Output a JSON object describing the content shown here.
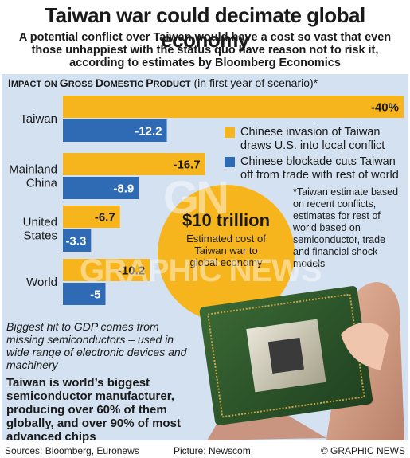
{
  "header": {
    "title": "Taiwan war could decimate global economy",
    "subtitle": "A potential conflict over Taiwan would have a cost so vast that even those unhappiest with the status quo have reason not to risk it, according to estimates by Bloomberg Economics"
  },
  "section": {
    "title_big_1": "I",
    "title_small_1": "MPACT ON ",
    "title_big_2": "G",
    "title_small_2": "ROSS ",
    "title_big_3": "D",
    "title_small_3": "OMESTIC ",
    "title_big_4": "P",
    "title_small_4": "RODUCT",
    "title_note": " (in first year of scenario)*"
  },
  "chart_data": {
    "type": "bar",
    "orientation": "horizontal",
    "categories": [
      "Taiwan",
      "Mainland China",
      "United States",
      "World"
    ],
    "category_lines": [
      [
        "Taiwan"
      ],
      [
        "Mainland",
        "China"
      ],
      [
        "United",
        "States"
      ],
      [
        "World"
      ]
    ],
    "series": [
      {
        "name": "Chinese invasion of Taiwan draws U.S. into local conflict",
        "values": [
          -40,
          -16.7,
          -6.7,
          -10.2
        ],
        "labels": [
          "-40%",
          "-16.7",
          "-6.7",
          "-10.2"
        ],
        "color": "#f7b51d"
      },
      {
        "name": "Chinese blockade cuts Taiwan off from trade with rest of world",
        "values": [
          -12.2,
          -8.9,
          -3.3,
          -5
        ],
        "labels": [
          "-12.2",
          "-8.9",
          "-3.3",
          "-5"
        ],
        "color": "#2f6ab4"
      }
    ],
    "xlim": [
      0,
      -40
    ],
    "grid": false
  },
  "legend": {
    "invasion": "Chinese invasion of Taiwan draws U.S. into local conflict",
    "blockade": "Chinese blockade cuts Taiwan off from trade with rest of world"
  },
  "footnote": "*Taiwan estimate based on recent conflicts, estimates for rest of world based on semiconductor, trade and financial shock models",
  "cost_callout": {
    "value": "$10 trillion",
    "caption": "Estimated cost of Taiwan war to global economy"
  },
  "notes": {
    "italic": "Biggest hit to GDP comes from missing semiconductors – used in wide range of electronic devices and machinery",
    "bold": "Taiwan is world’s biggest semiconductor manufacturer, producing over 60% of them globally, and over 90% of most advanced chips"
  },
  "footer": {
    "sources": "Sources: Bloomberg, Euronews",
    "picture": "Picture: Newscom",
    "credit": "© GRAPHIC NEWS"
  },
  "watermark": {
    "logo": "GN",
    "text": "GRAPHIC NEWS"
  },
  "colors": {
    "invasion": "#f7b51d",
    "blockade": "#2f6ab4",
    "panel": "#d3e1f0"
  }
}
